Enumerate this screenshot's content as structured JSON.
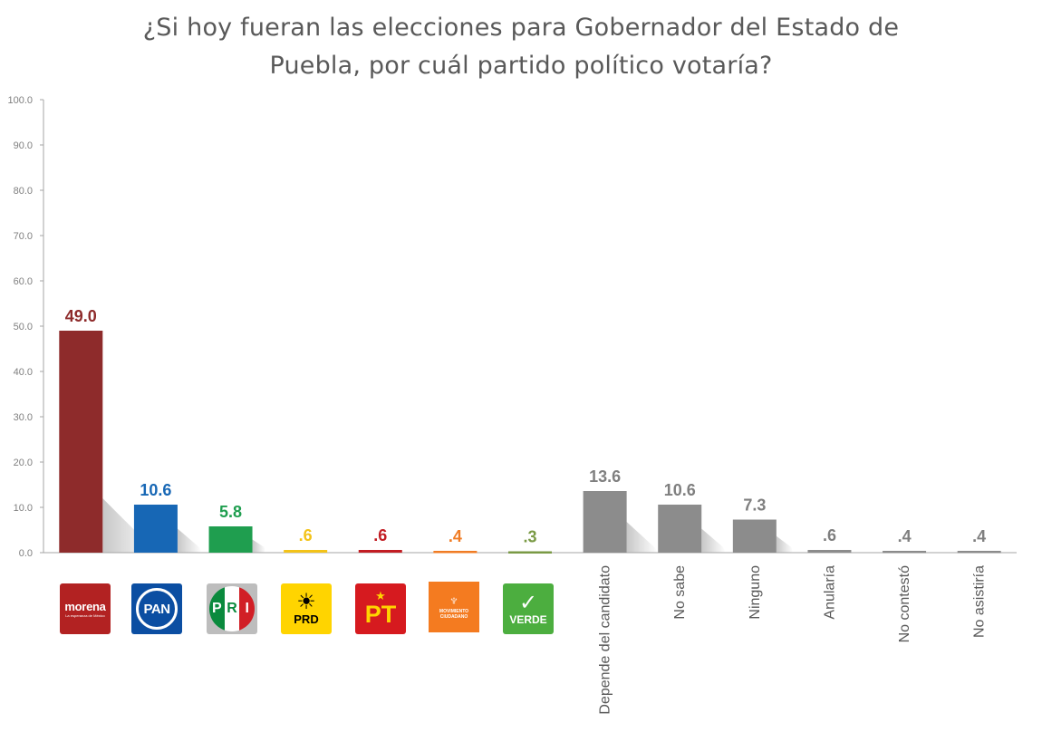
{
  "chart_data": {
    "type": "bar",
    "title_lines": [
      "¿Si hoy fueran las elecciones para Gobernador del Estado de",
      "Puebla, por cuál partido político votaría?"
    ],
    "ylim": [
      0,
      100
    ],
    "y_ticks": [
      "0.0",
      "10.0",
      "20.0",
      "30.0",
      "40.0",
      "50.0",
      "60.0",
      "70.0",
      "80.0",
      "90.0",
      "100.0"
    ],
    "grid": false,
    "categories": [
      "morena",
      "PAN",
      "PRI",
      "PRD",
      "PT",
      "MOVIMIENTO CIUDADANO",
      "VERDE",
      "Depende del candidato",
      "No sabe",
      "Ninguno",
      "Anularía",
      "No contestó",
      "No asistiría"
    ],
    "values": [
      49.0,
      10.6,
      5.8,
      0.6,
      0.6,
      0.4,
      0.3,
      13.6,
      10.6,
      7.3,
      0.6,
      0.4,
      0.4
    ],
    "value_labels": [
      "49.0",
      "10.6",
      "5.8",
      ".6",
      ".6",
      ".4",
      ".3",
      "13.6",
      "10.6",
      "7.3",
      ".6",
      ".4",
      ".4"
    ],
    "bar_colors": [
      "#8e2b2b",
      "#1767b5",
      "#1f9e4f",
      "#f3c319",
      "#c21d23",
      "#f07c24",
      "#7a9a45",
      "#8c8c8c",
      "#8c8c8c",
      "#8c8c8c",
      "#8c8c8c",
      "#8c8c8c",
      "#8c8c8c"
    ],
    "label_colors": [
      "#8e2b2b",
      "#1767b5",
      "#1f9e4f",
      "#f3c319",
      "#c21d23",
      "#f07c24",
      "#7a9a45",
      "#7f7f7f",
      "#7f7f7f",
      "#7f7f7f",
      "#7f7f7f",
      "#7f7f7f",
      "#7f7f7f"
    ],
    "x_text_labels": [
      "Depende del candidato",
      "No sabe",
      "Ninguno",
      "Anularía",
      "No contestó",
      "No asistiría"
    ]
  },
  "logos": {
    "morena": {
      "name": "morena",
      "tagline": "La esperanza de México",
      "icon": "morena-logo"
    },
    "pan": {
      "name": "PAN",
      "icon": "pan-logo"
    },
    "pri": {
      "letters": [
        "P",
        "R",
        "I"
      ],
      "icon": "pri-logo"
    },
    "prd": {
      "name": "PRD",
      "icon": "prd-sun-logo"
    },
    "pt": {
      "name": "PT",
      "icon": "pt-star-logo"
    },
    "mc": {
      "name": "MOVIMIENTO CIUDADANO",
      "icon": "mc-eagle-logo"
    },
    "verde": {
      "name": "VERDE",
      "icon": "verde-toucan-logo"
    }
  }
}
